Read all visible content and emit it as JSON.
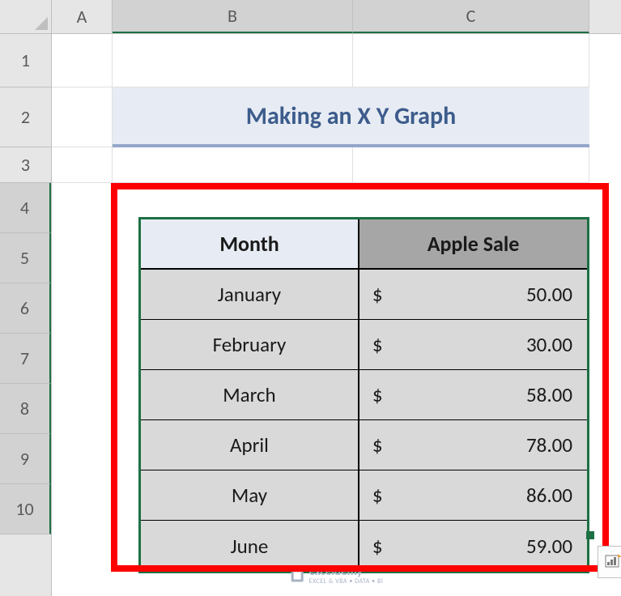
{
  "columns": {
    "a": "A",
    "b": "B",
    "c": "C"
  },
  "rows": [
    "1",
    "2",
    "3",
    "4",
    "5",
    "6",
    "7",
    "8",
    "9",
    "10"
  ],
  "title": "Making an X Y Graph",
  "table": {
    "headers": {
      "month": "Month",
      "sale": "Apple Sale"
    },
    "currency": "$",
    "rows": [
      {
        "month": "January",
        "sale": "50.00"
      },
      {
        "month": "February",
        "sale": "30.00"
      },
      {
        "month": "March",
        "sale": "58.00"
      },
      {
        "month": "April",
        "sale": "78.00"
      },
      {
        "month": "May",
        "sale": "86.00"
      },
      {
        "month": "June",
        "sale": "59.00"
      }
    ]
  },
  "watermark": {
    "name": "exceldemy",
    "tagline": "EXCEL & VBA • DATA • BI"
  },
  "colors": {
    "selection_border": "#1d7044",
    "highlight": "#ff0000",
    "title_bg": "#e7ecf4",
    "title_underline": "#94a6c9",
    "title_text": "#3d5c8c",
    "th_month_bg": "#e7ecf4",
    "th_sale_bg": "#a6a6a6",
    "td_bg": "#d9d9d9"
  }
}
